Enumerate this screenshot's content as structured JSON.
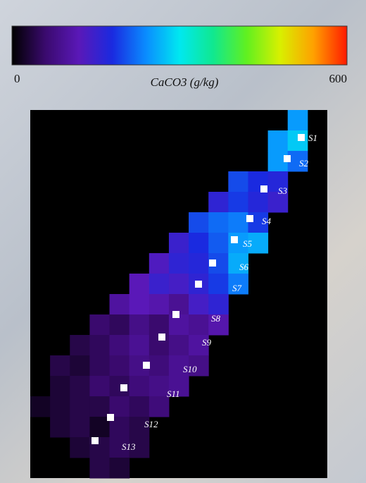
{
  "colorbar": {
    "min": 0,
    "max": 600,
    "label": "CaCO3 (g/kg)",
    "colors": [
      "#000000",
      "#3a0a6e",
      "#5a18b8",
      "#1a2ae0",
      "#0a8cff",
      "#00e8f0",
      "#10e890",
      "#60f020",
      "#d8f000",
      "#ffa000",
      "#ff1a00"
    ]
  },
  "raster": {
    "rows": [
      [
        null,
        null,
        null,
        null,
        null,
        null,
        null,
        null,
        null,
        null,
        null,
        null,
        null,
        250,
        null
      ],
      [
        null,
        null,
        null,
        null,
        null,
        null,
        null,
        null,
        null,
        null,
        null,
        null,
        250,
        280,
        null
      ],
      [
        null,
        null,
        null,
        null,
        null,
        null,
        null,
        null,
        null,
        null,
        null,
        null,
        250,
        220,
        null
      ],
      [
        null,
        null,
        null,
        null,
        null,
        null,
        null,
        null,
        null,
        null,
        200,
        180,
        170,
        null,
        null
      ],
      [
        null,
        null,
        null,
        null,
        null,
        null,
        null,
        null,
        null,
        160,
        190,
        170,
        150,
        null,
        null
      ],
      [
        null,
        null,
        null,
        null,
        null,
        null,
        null,
        null,
        200,
        220,
        230,
        190,
        null,
        null,
        null
      ],
      [
        null,
        null,
        null,
        null,
        null,
        null,
        null,
        150,
        180,
        210,
        250,
        260,
        null,
        null,
        null
      ],
      [
        null,
        null,
        null,
        null,
        null,
        null,
        130,
        160,
        170,
        200,
        260,
        null,
        null,
        null,
        null
      ],
      [
        null,
        null,
        null,
        null,
        null,
        120,
        150,
        140,
        160,
        190,
        230,
        null,
        null,
        null,
        null
      ],
      [
        null,
        null,
        null,
        null,
        100,
        120,
        110,
        90,
        140,
        160,
        null,
        null,
        null,
        null,
        null
      ],
      [
        null,
        null,
        null,
        60,
        50,
        80,
        60,
        100,
        90,
        110,
        null,
        null,
        null,
        null,
        null
      ],
      [
        null,
        null,
        40,
        50,
        70,
        90,
        60,
        80,
        100,
        null,
        null,
        null,
        null,
        null,
        null
      ],
      [
        null,
        40,
        30,
        50,
        60,
        80,
        70,
        90,
        80,
        null,
        null,
        null,
        null,
        null,
        null
      ],
      [
        null,
        30,
        40,
        60,
        50,
        70,
        80,
        90,
        null,
        null,
        null,
        null,
        null,
        null,
        null
      ],
      [
        20,
        30,
        40,
        40,
        60,
        50,
        70,
        null,
        null,
        null,
        null,
        null,
        null,
        null,
        null
      ],
      [
        null,
        30,
        40,
        20,
        50,
        40,
        null,
        null,
        null,
        null,
        null,
        null,
        null,
        null,
        null
      ],
      [
        null,
        null,
        30,
        40,
        50,
        40,
        null,
        null,
        null,
        null,
        null,
        null,
        null,
        null,
        null
      ],
      [
        null,
        null,
        null,
        40,
        30,
        null,
        null,
        null,
        null,
        null,
        null,
        null,
        null,
        null,
        null
      ]
    ]
  },
  "stations": [
    "S1",
    "S2",
    "S3",
    "S4",
    "S5",
    "S6",
    "S7",
    "S8",
    "S9",
    "S10",
    "S11",
    "S12",
    "S13"
  ]
}
